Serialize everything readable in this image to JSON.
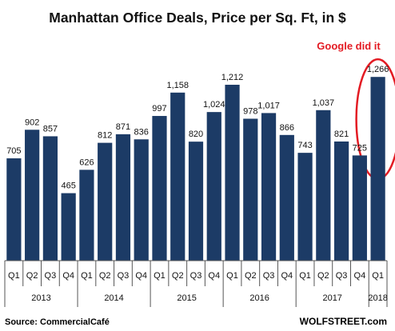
{
  "colors": {
    "bar": "#1c3b66",
    "highlight": "#e31b23",
    "axis": "#555555"
  },
  "chart_data": {
    "type": "bar",
    "title": "Manhattan  Office Deals, Price per Sq. Ft, in $",
    "categories": [
      "Q1 2013",
      "Q2 2013",
      "Q3 2013",
      "Q4 2013",
      "Q1 2014",
      "Q2 2014",
      "Q3 2014",
      "Q4 2014",
      "Q1 2015",
      "Q2 2015",
      "Q3 2015",
      "Q4 2015",
      "Q1 2016",
      "Q2 2016",
      "Q3 2016",
      "Q4 2016",
      "Q1 2017",
      "Q2 2017",
      "Q3 2017",
      "Q4 2017",
      "Q1 2018"
    ],
    "quarter_labels": [
      "Q1",
      "Q2",
      "Q3",
      "Q4",
      "Q1",
      "Q2",
      "Q3",
      "Q4",
      "Q1",
      "Q2",
      "Q3",
      "Q4",
      "Q1",
      "Q2",
      "Q3",
      "Q4",
      "Q1",
      "Q2",
      "Q3",
      "Q4",
      "Q1"
    ],
    "values": [
      705,
      902,
      857,
      465,
      626,
      812,
      871,
      836,
      997,
      1158,
      820,
      1024,
      1212,
      978,
      1017,
      866,
      743,
      1037,
      821,
      725,
      1266
    ],
    "value_labels": [
      "705",
      "902",
      "857",
      "465",
      "626",
      "812",
      "871",
      "836",
      "997",
      "1,158",
      "820",
      "1,024",
      "1,212",
      "978",
      "1,017",
      "866",
      "743",
      "1,037",
      "821",
      "725",
      "1,266"
    ],
    "years": [
      {
        "label": "2013",
        "start": 0,
        "count": 4
      },
      {
        "label": "2014",
        "start": 4,
        "count": 4
      },
      {
        "label": "2015",
        "start": 8,
        "count": 4
      },
      {
        "label": "2016",
        "start": 12,
        "count": 4
      },
      {
        "label": "2017",
        "start": 16,
        "count": 4
      },
      {
        "label": "2018",
        "start": 20,
        "count": 1
      }
    ],
    "ylim": [
      0,
      1400
    ],
    "grid": false,
    "legend": "none",
    "annotation": {
      "text": "Google did it",
      "target_index": 20
    },
    "source": "Source: CommercialCafé",
    "brand": "WOLFSTREET.com"
  }
}
